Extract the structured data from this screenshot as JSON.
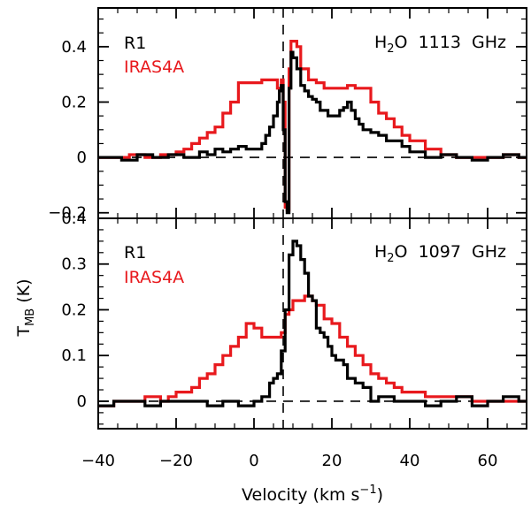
{
  "chart_data": [
    {
      "type": "line",
      "panel": "top",
      "title": "H₂O 1113 GHz",
      "title_parts": {
        "base": "H",
        "sub": "2",
        "rest": "O  1113  GHz"
      },
      "xlim": [
        -40,
        70
      ],
      "ylim": [
        -0.22,
        0.54
      ],
      "yticks": [
        -0.2,
        0,
        0.2,
        0.4
      ],
      "ytick_labels": [
        "−0.2",
        "0",
        "0.2",
        "0.4"
      ],
      "vline_x": 7.5,
      "hline_y": 0,
      "series": [
        {
          "name": "R1",
          "color": "#000000",
          "x": [
            -40,
            -34,
            -30,
            -26,
            -22,
            -18,
            -14,
            -12,
            -10,
            -8,
            -6,
            -4,
            -2,
            0,
            2,
            3,
            4,
            5,
            6,
            6.5,
            7,
            7.5,
            8,
            8.5,
            9,
            9.5,
            10,
            11,
            12,
            13,
            14,
            15,
            16,
            17,
            18,
            19,
            20,
            21,
            22,
            23,
            24,
            25,
            26,
            27,
            28,
            30,
            32,
            34,
            36,
            38,
            40,
            44,
            48,
            52,
            56,
            60,
            64,
            68,
            70
          ],
          "y": [
            0.0,
            -0.01,
            0.01,
            0.0,
            0.01,
            0.0,
            0.02,
            0.01,
            0.03,
            0.02,
            0.03,
            0.04,
            0.03,
            0.03,
            0.05,
            0.08,
            0.11,
            0.15,
            0.2,
            0.24,
            0.26,
            0.1,
            -0.16,
            -0.2,
            0.25,
            0.38,
            0.36,
            0.32,
            0.26,
            0.24,
            0.22,
            0.21,
            0.2,
            0.17,
            0.17,
            0.15,
            0.15,
            0.15,
            0.17,
            0.18,
            0.2,
            0.17,
            0.14,
            0.12,
            0.1,
            0.09,
            0.08,
            0.06,
            0.06,
            0.04,
            0.02,
            0.0,
            0.01,
            0.0,
            -0.01,
            0.0,
            0.01,
            0.0,
            0.0
          ]
        },
        {
          "name": "IRAS4A",
          "color": "#e8191d",
          "x": [
            -40,
            -36,
            -32,
            -28,
            -24,
            -20,
            -18,
            -16,
            -14,
            -12,
            -10,
            -8,
            -6,
            -4,
            -2,
            0,
            2,
            4,
            6,
            7,
            7.5,
            8,
            8.5,
            9,
            9.5,
            10,
            11,
            12,
            14,
            16,
            18,
            20,
            22,
            24,
            26,
            28,
            30,
            32,
            34,
            36,
            38,
            40,
            44,
            48,
            52,
            56,
            60,
            64,
            68,
            70
          ],
          "y": [
            0.0,
            0.0,
            0.01,
            0.0,
            0.01,
            0.02,
            0.03,
            0.05,
            0.07,
            0.09,
            0.11,
            0.16,
            0.2,
            0.27,
            0.27,
            0.27,
            0.28,
            0.28,
            0.25,
            0.28,
            0.2,
            -0.18,
            -0.19,
            0.32,
            0.42,
            0.42,
            0.4,
            0.32,
            0.28,
            0.27,
            0.25,
            0.25,
            0.25,
            0.26,
            0.25,
            0.25,
            0.2,
            0.16,
            0.14,
            0.11,
            0.08,
            0.06,
            0.03,
            0.01,
            0.0,
            0.0,
            0.0,
            0.01,
            0.0,
            0.0
          ]
        }
      ]
    },
    {
      "type": "line",
      "panel": "bottom",
      "title": "H₂O 1097 GHz",
      "title_parts": {
        "base": "H",
        "sub": "2",
        "rest": "O  1097  GHz"
      },
      "xlim": [
        -40,
        70
      ],
      "ylim": [
        -0.06,
        0.4
      ],
      "yticks": [
        0,
        0.1,
        0.2,
        0.3,
        0.4
      ],
      "ytick_labels": [
        "0",
        "0.1",
        "0.2",
        "0.3",
        "0.4"
      ],
      "xticks": [
        -40,
        -20,
        0,
        20,
        40,
        60
      ],
      "xtick_labels": [
        "−40",
        "−20",
        "0",
        "20",
        "40",
        "60"
      ],
      "xlabel": "Velocity (km s⁻¹)",
      "vline_x": 7.5,
      "hline_y": 0,
      "series": [
        {
          "name": "R1",
          "color": "#000000",
          "x": [
            -40,
            -36,
            -32,
            -28,
            -24,
            -20,
            -16,
            -12,
            -8,
            -4,
            0,
            2,
            4,
            5,
            6,
            7,
            8,
            9,
            10,
            11,
            12,
            13,
            14,
            15,
            16,
            17,
            18,
            19,
            20,
            21,
            22,
            23,
            24,
            26,
            28,
            30,
            32,
            36,
            40,
            44,
            48,
            52,
            56,
            60,
            64,
            68,
            70
          ],
          "y": [
            -0.01,
            0.0,
            0.0,
            -0.01,
            0.0,
            0.0,
            0.0,
            -0.01,
            0.0,
            -0.01,
            0.0,
            0.01,
            0.04,
            0.05,
            0.06,
            0.11,
            0.2,
            0.32,
            0.35,
            0.34,
            0.31,
            0.28,
            0.23,
            0.22,
            0.16,
            0.15,
            0.14,
            0.12,
            0.1,
            0.09,
            0.09,
            0.08,
            0.05,
            0.04,
            0.03,
            0.0,
            0.01,
            0.0,
            0.0,
            -0.01,
            0.0,
            0.01,
            -0.01,
            0.0,
            0.01,
            0.0,
            0.0
          ]
        },
        {
          "name": "IRAS4A",
          "color": "#e8191d",
          "x": [
            -40,
            -36,
            -32,
            -28,
            -24,
            -22,
            -20,
            -18,
            -16,
            -14,
            -12,
            -10,
            -8,
            -6,
            -4,
            -2,
            0,
            2,
            4,
            6,
            7,
            8,
            9,
            10,
            11,
            12,
            13,
            14,
            15,
            16,
            18,
            20,
            22,
            24,
            26,
            28,
            30,
            32,
            34,
            36,
            38,
            40,
            44,
            48,
            52,
            56,
            60,
            64,
            68,
            70
          ],
          "y": [
            -0.01,
            0.0,
            0.0,
            0.01,
            0.0,
            0.01,
            0.02,
            0.02,
            0.03,
            0.05,
            0.06,
            0.08,
            0.1,
            0.12,
            0.14,
            0.17,
            0.16,
            0.14,
            0.14,
            0.14,
            0.15,
            0.19,
            0.2,
            0.22,
            0.22,
            0.22,
            0.23,
            0.23,
            0.22,
            0.21,
            0.18,
            0.17,
            0.14,
            0.12,
            0.1,
            0.08,
            0.06,
            0.05,
            0.04,
            0.03,
            0.02,
            0.02,
            0.01,
            0.01,
            0.01,
            0.0,
            0.0,
            0.0,
            0.0,
            0.0
          ]
        }
      ]
    }
  ],
  "labels": {
    "ylabel": "T",
    "ylabel_sub": "MB",
    "ylabel_rest": " (K)",
    "xlabel_base": "Velocity (km s",
    "xlabel_sup": "−1",
    "xlabel_end": ")"
  }
}
